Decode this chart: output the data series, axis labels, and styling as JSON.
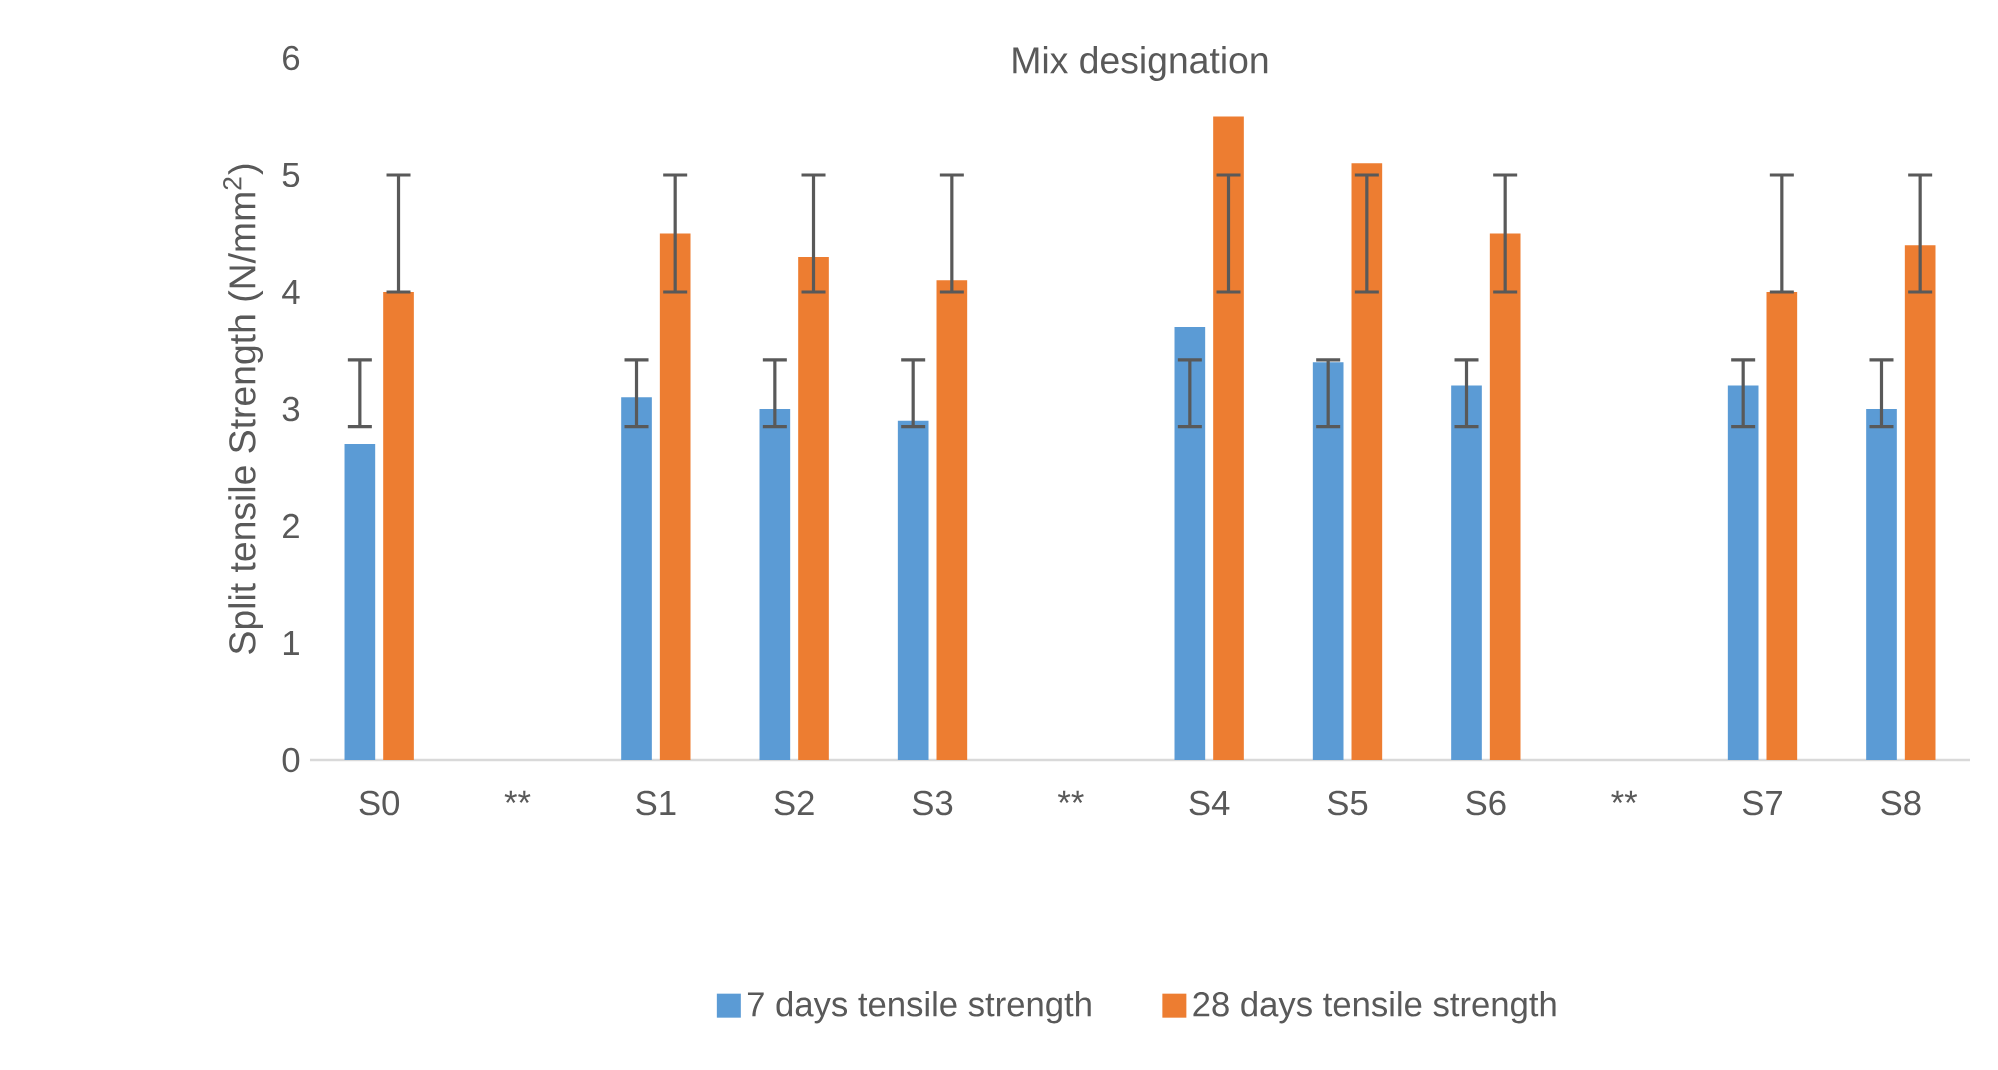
{
  "chart_data": {
    "type": "bar",
    "title": "Mix designation",
    "ylabel": "Split tensile Strength (N/mm$^{2}$)",
    "categories": [
      "S0",
      "**",
      "S1",
      "S2",
      "S3",
      "**",
      "S4",
      "S5",
      "S6",
      "**",
      "S7",
      "S8"
    ],
    "series": [
      {
        "name": "7 days tensile strength",
        "color": "#5b9bd5",
        "values": [
          2.7,
          null,
          3.1,
          3.0,
          2.9,
          null,
          3.7,
          3.4,
          3.2,
          null,
          3.2,
          3.0
        ],
        "errors": [
          [
            2.85,
            3.42
          ],
          null,
          [
            2.85,
            3.42
          ],
          [
            2.85,
            3.42
          ],
          [
            2.85,
            3.42
          ],
          null,
          [
            2.85,
            3.42
          ],
          [
            2.85,
            3.42
          ],
          [
            2.85,
            3.42
          ],
          null,
          [
            2.85,
            3.42
          ],
          [
            2.85,
            3.42
          ]
        ]
      },
      {
        "name": "28 days tensile strength",
        "color": "#ed7d31",
        "values": [
          4.0,
          null,
          4.5,
          4.3,
          4.1,
          null,
          5.5,
          5.1,
          4.5,
          null,
          4.0,
          4.4
        ],
        "errors": [
          [
            4,
            5
          ],
          null,
          [
            4,
            5
          ],
          [
            4,
            5
          ],
          [
            4,
            5
          ],
          null,
          [
            4,
            5
          ],
          [
            4,
            5
          ],
          [
            4,
            5
          ],
          null,
          [
            4,
            5
          ],
          [
            4,
            5
          ]
        ]
      }
    ],
    "ylim": [
      0,
      6
    ],
    "yticks": [
      0,
      1,
      2,
      3,
      4,
      5,
      6
    ],
    "grid": false,
    "legend": "bottom"
  }
}
